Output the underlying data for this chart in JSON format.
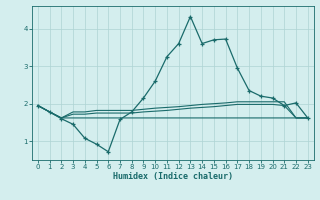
{
  "xlabel": "Humidex (Indice chaleur)",
  "bg_color": "#d4eeee",
  "line_color": "#1a6b6b",
  "grid_color": "#aed4d4",
  "xlim": [
    -0.5,
    23.5
  ],
  "ylim": [
    0.5,
    4.6
  ],
  "yticks": [
    1,
    2,
    3,
    4
  ],
  "xticks": [
    0,
    1,
    2,
    3,
    4,
    5,
    6,
    7,
    8,
    9,
    10,
    11,
    12,
    13,
    14,
    15,
    16,
    17,
    18,
    19,
    20,
    21,
    22,
    23
  ],
  "series_main": {
    "x": [
      0,
      1,
      2,
      3,
      4,
      5,
      6,
      7,
      8,
      9,
      10,
      11,
      12,
      13,
      14,
      15,
      16,
      17,
      18,
      19,
      20,
      21,
      22,
      23
    ],
    "y": [
      1.95,
      1.78,
      1.6,
      1.45,
      1.08,
      0.92,
      0.72,
      1.58,
      1.78,
      2.15,
      2.6,
      3.25,
      3.6,
      4.32,
      3.6,
      3.7,
      3.72,
      2.95,
      2.35,
      2.2,
      2.15,
      1.95,
      2.02,
      1.62
    ]
  },
  "series_flat1": {
    "x": [
      0,
      1,
      2,
      3,
      4,
      5,
      6,
      7,
      8,
      9,
      10,
      11,
      12,
      13,
      14,
      15,
      16,
      17,
      18,
      19,
      20,
      21,
      22,
      23
    ],
    "y": [
      1.95,
      1.78,
      1.62,
      1.62,
      1.62,
      1.62,
      1.62,
      1.62,
      1.62,
      1.62,
      1.62,
      1.62,
      1.62,
      1.62,
      1.62,
      1.62,
      1.62,
      1.62,
      1.62,
      1.62,
      1.62,
      1.62,
      1.62,
      1.62
    ]
  },
  "series_flat2": {
    "x": [
      0,
      1,
      2,
      3,
      4,
      5,
      6,
      7,
      8,
      9,
      10,
      11,
      12,
      13,
      14,
      15,
      16,
      17,
      18,
      19,
      20,
      21,
      22,
      23
    ],
    "y": [
      1.95,
      1.78,
      1.62,
      1.78,
      1.78,
      1.82,
      1.82,
      1.82,
      1.82,
      1.85,
      1.88,
      1.9,
      1.92,
      1.95,
      1.98,
      2.0,
      2.02,
      2.05,
      2.05,
      2.05,
      2.05,
      2.05,
      1.62,
      1.62
    ]
  },
  "series_flat3": {
    "x": [
      0,
      1,
      2,
      3,
      4,
      5,
      6,
      7,
      8,
      9,
      10,
      11,
      12,
      13,
      14,
      15,
      16,
      17,
      18,
      19,
      20,
      21,
      22,
      23
    ],
    "y": [
      1.95,
      1.78,
      1.62,
      1.72,
      1.72,
      1.75,
      1.75,
      1.75,
      1.75,
      1.78,
      1.8,
      1.82,
      1.85,
      1.88,
      1.9,
      1.92,
      1.95,
      1.98,
      1.98,
      1.98,
      1.98,
      1.95,
      1.62,
      1.62
    ]
  }
}
